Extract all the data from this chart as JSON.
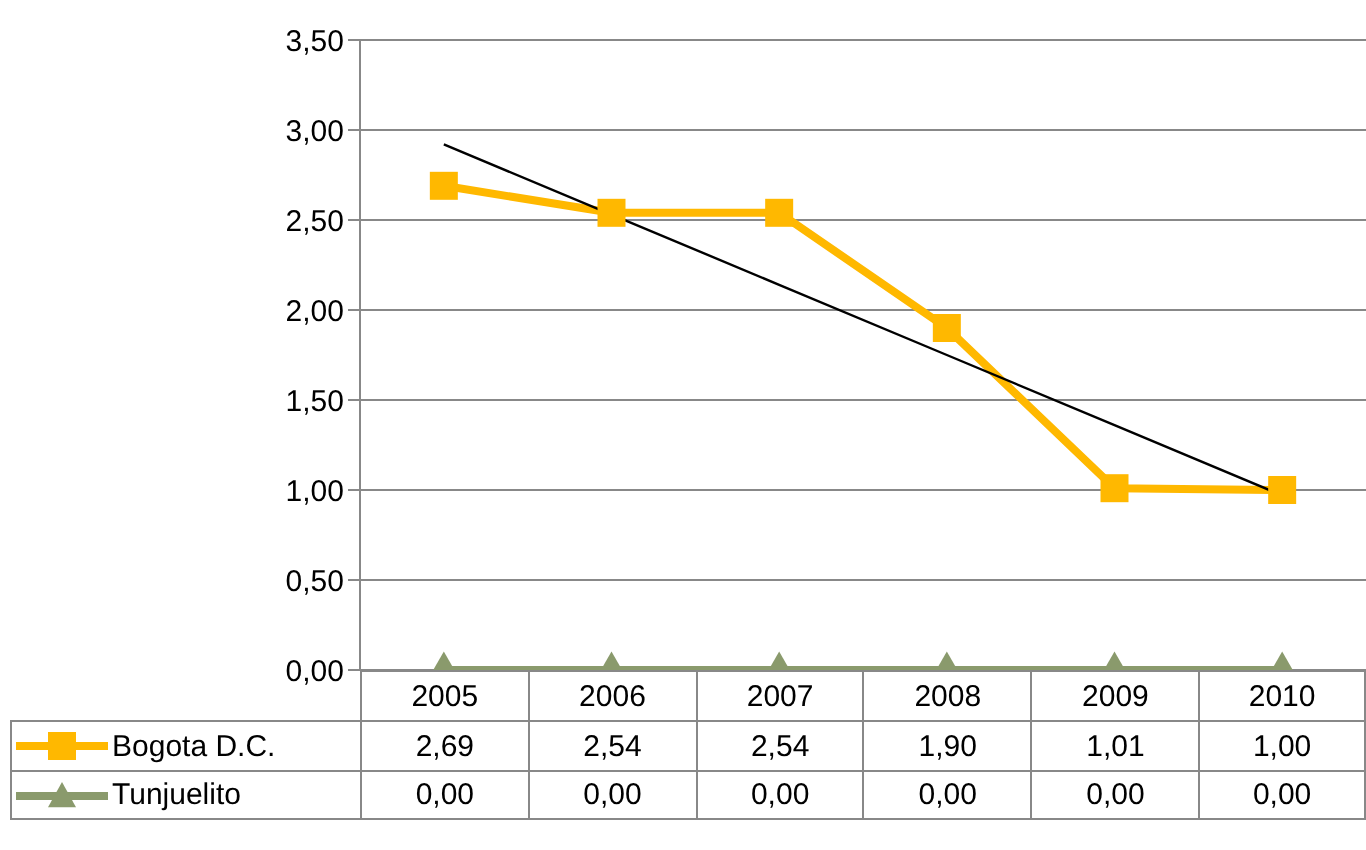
{
  "chart_data": {
    "type": "line",
    "categories": [
      "2005",
      "2006",
      "2007",
      "2008",
      "2009",
      "2010"
    ],
    "series": [
      {
        "name": "Bogota D.C.",
        "color": "#ffb800",
        "marker": "square",
        "values": [
          2.69,
          2.54,
          2.54,
          1.9,
          1.01,
          1.0
        ],
        "value_labels": [
          "2,69",
          "2,54",
          "2,54",
          "1,90",
          "1,01",
          "1,00"
        ]
      },
      {
        "name": "Tunjuelito",
        "color": "#8a9a6c",
        "marker": "triangle",
        "values": [
          0,
          0,
          0,
          0,
          0,
          0
        ],
        "value_labels": [
          "0,00",
          "0,00",
          "0,00",
          "0,00",
          "0,00",
          "0,00"
        ]
      },
      {
        "color": "#000000",
        "marker": "none",
        "values": [
          2.92,
          2.53,
          2.14,
          1.75,
          1.36,
          0.97
        ]
      }
    ],
    "ylim": [
      0,
      3.5
    ],
    "yticks": [
      {
        "value": 0,
        "label": "0,00"
      },
      {
        "value": 0.5,
        "label": "0,50"
      },
      {
        "value": 1,
        "label": "1,00"
      },
      {
        "value": 1.5,
        "label": "1,50"
      },
      {
        "value": 2,
        "label": "2,00"
      },
      {
        "value": 2.5,
        "label": "2,50"
      },
      {
        "value": 3,
        "label": "3,00"
      },
      {
        "value": 3.5,
        "label": "3,50"
      }
    ],
    "grid": "y",
    "legend": "left"
  }
}
